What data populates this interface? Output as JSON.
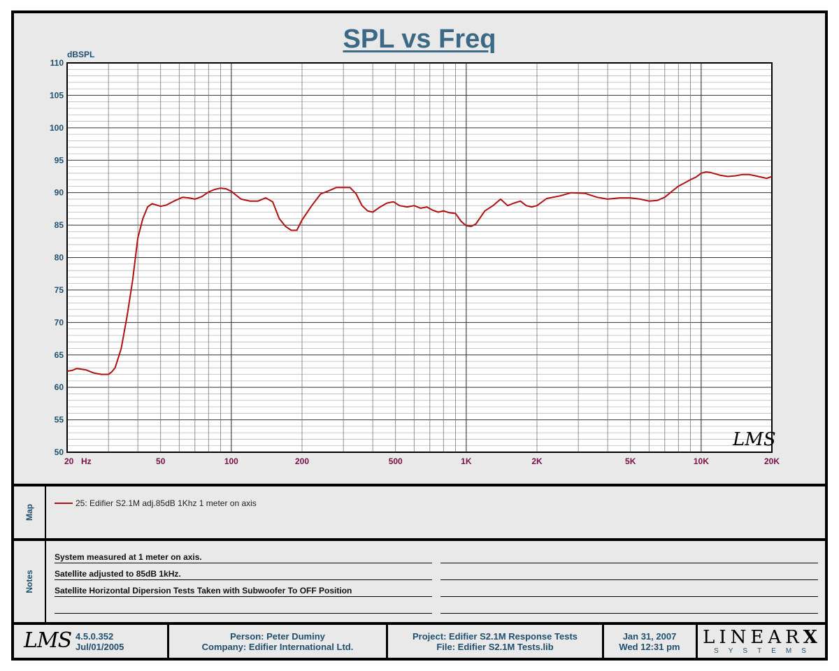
{
  "chart_data": {
    "type": "line",
    "title": "SPL vs Freq",
    "ylabel": "dBSPL",
    "xlabel": "Hz",
    "x_scale": "log",
    "xlim": [
      20,
      20000
    ],
    "ylim": [
      50,
      110
    ],
    "y_ticks": [
      50,
      55,
      60,
      65,
      70,
      75,
      80,
      85,
      90,
      95,
      100,
      105,
      110
    ],
    "x_ticks": [
      {
        "value": 20,
        "label": "20"
      },
      {
        "value": 50,
        "label": "50"
      },
      {
        "value": 100,
        "label": "100"
      },
      {
        "value": 200,
        "label": "200"
      },
      {
        "value": 500,
        "label": "500"
      },
      {
        "value": 1000,
        "label": "1K"
      },
      {
        "value": 2000,
        "label": "2K"
      },
      {
        "value": 5000,
        "label": "5K"
      },
      {
        "value": 10000,
        "label": "10K"
      },
      {
        "value": 20000,
        "label": "20K"
      }
    ],
    "grid": true,
    "series": [
      {
        "name": "25: Edifier S2.1M adj.85dB 1Khz 1 meter on axis",
        "color": "#b01010",
        "x": [
          20,
          21,
          22,
          24,
          26,
          28,
          30,
          31,
          32,
          34,
          36,
          38,
          40,
          42,
          44,
          46,
          48,
          50,
          53,
          57,
          62,
          66,
          70,
          75,
          80,
          85,
          90,
          95,
          100,
          110,
          120,
          130,
          140,
          150,
          160,
          170,
          180,
          190,
          200,
          220,
          240,
          260,
          280,
          300,
          320,
          340,
          360,
          380,
          400,
          430,
          460,
          490,
          520,
          560,
          600,
          640,
          680,
          720,
          760,
          800,
          850,
          900,
          950,
          1000,
          1050,
          1100,
          1200,
          1300,
          1400,
          1500,
          1600,
          1700,
          1800,
          1900,
          2000,
          2200,
          2500,
          2800,
          3200,
          3600,
          4000,
          4500,
          5000,
          5500,
          6000,
          6500,
          7000,
          7500,
          8000,
          8500,
          9000,
          9500,
          10000,
          10500,
          11000,
          12000,
          13000,
          14000,
          15000,
          16000,
          17000,
          18000,
          19000,
          20000
        ],
        "values": [
          62.5,
          62.6,
          62.9,
          62.7,
          62.2,
          62.0,
          62.0,
          62.4,
          63.0,
          66.0,
          71.0,
          76.5,
          83.0,
          86.0,
          87.8,
          88.3,
          88.1,
          87.9,
          88.1,
          88.7,
          89.3,
          89.2,
          89.0,
          89.4,
          90.1,
          90.5,
          90.7,
          90.6,
          90.2,
          89.0,
          88.7,
          88.7,
          89.2,
          88.6,
          86.0,
          84.8,
          84.2,
          84.2,
          85.8,
          88.0,
          89.8,
          90.3,
          90.8,
          90.8,
          90.8,
          89.8,
          88.0,
          87.2,
          87.0,
          87.8,
          88.4,
          88.6,
          88.0,
          87.8,
          88.0,
          87.6,
          87.8,
          87.3,
          87.0,
          87.2,
          86.9,
          86.8,
          85.6,
          84.9,
          84.8,
          85.2,
          87.2,
          88.0,
          89.0,
          88.0,
          88.4,
          88.7,
          88.0,
          87.8,
          88.0,
          89.1,
          89.5,
          90.0,
          89.9,
          89.3,
          89.0,
          89.2,
          89.2,
          89.0,
          88.7,
          88.8,
          89.3,
          90.2,
          91.0,
          91.5,
          92.0,
          92.4,
          93.0,
          93.2,
          93.1,
          92.7,
          92.5,
          92.6,
          92.8,
          92.8,
          92.6,
          92.4,
          92.2,
          92.5
        ]
      }
    ]
  },
  "header": {
    "title": "SPL vs Freq"
  },
  "map": {
    "label": "Map",
    "entry": "25: Edifier S2.1M adj.85dB 1Khz 1 meter on axis"
  },
  "notes": {
    "label": "Notes",
    "lines": [
      "System measured at 1 meter on axis.",
      "Satellite adjusted to 85dB 1kHz.",
      "Satellite Horizontal Dipersion Tests Taken with Subwoofer To OFF Position",
      ""
    ]
  },
  "footer": {
    "version": "4.5.0.352",
    "version_date": "Jul/01/2005",
    "person": "Person: Peter Duminy",
    "company": "Company: Edifier International Ltd.",
    "project": "Project: Edifier S2.1M Response Tests",
    "file": "File: Edifier S2.1M Tests.lib",
    "date": "Jan 31, 2007",
    "time": "Wed 12:31 pm",
    "lms_logo": "LMS",
    "brand": "LINEAR",
    "brand_x": "X",
    "brand_sub": "SYSTEMS"
  }
}
